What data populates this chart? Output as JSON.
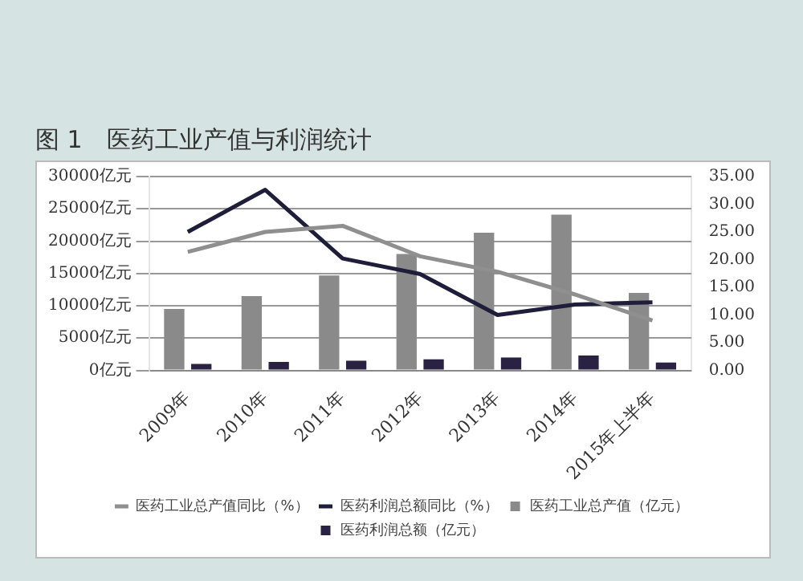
{
  "chart_data": {
    "type": "bar",
    "title": "图 1　医药工业产值与利润统计",
    "categories": [
      "2009年",
      "2010年",
      "2011年",
      "2012年",
      "2013年",
      "2014年",
      "2015年上半年"
    ],
    "series": [
      {
        "name": "医药工业总产值（亿元）",
        "color": "#8a8a8a",
        "values": [
          9500,
          11500,
          14700,
          18000,
          21300,
          24100,
          12000
        ]
      },
      {
        "name": "医药利润总额（亿元）",
        "color": "#2a2242",
        "values": [
          1000,
          1300,
          1500,
          1700,
          2000,
          2300,
          1200
        ]
      },
      {
        "name": "医药工业总产值同比（%）",
        "type": "line",
        "axis": "y2",
        "color": "#8f8f8f",
        "values": [
          21.4,
          25.0,
          26.1,
          20.6,
          17.8,
          13.7,
          9.0
        ]
      },
      {
        "name": "医药利润总额同比（%）",
        "type": "line",
        "axis": "y2",
        "color": "#1f1d3a",
        "values": [
          25.0,
          32.6,
          20.2,
          17.4,
          10.0,
          11.9,
          12.3
        ]
      }
    ],
    "ylim": [
      0,
      30000
    ],
    "yticks": [
      {
        "value": 0,
        "label": "0亿元"
      },
      {
        "value": 5000,
        "label": "5000亿元"
      },
      {
        "value": 10000,
        "label": "10000亿元"
      },
      {
        "value": 15000,
        "label": "15000亿元"
      },
      {
        "value": 20000,
        "label": "20000亿元"
      },
      {
        "value": 25000,
        "label": "25000亿元"
      },
      {
        "value": 30000,
        "label": "30000亿元"
      }
    ],
    "y2lim": [
      0,
      35
    ],
    "y2ticks": [
      {
        "value": 0,
        "label": "0.00"
      },
      {
        "value": 5,
        "label": "5.00"
      },
      {
        "value": 10,
        "label": "10.00"
      },
      {
        "value": 15,
        "label": "15.00"
      },
      {
        "value": 20,
        "label": "20.00"
      },
      {
        "value": 25,
        "label": "25.00"
      },
      {
        "value": 30,
        "label": "30.00"
      },
      {
        "value": 35,
        "label": "35.00"
      }
    ],
    "grid": "y",
    "legend": "bottom",
    "marker": "none",
    "line_style": "solid"
  }
}
